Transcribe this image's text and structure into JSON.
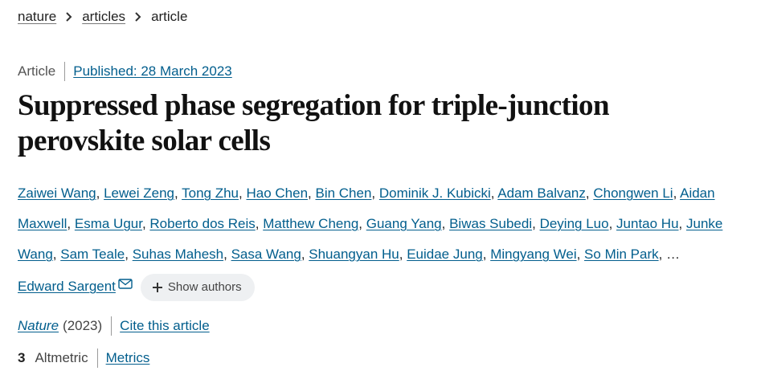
{
  "breadcrumb": {
    "items": [
      "nature",
      "articles",
      "article"
    ]
  },
  "meta": {
    "type": "Article",
    "published": "Published: 28 March 2023"
  },
  "title": "Suppressed phase segregation for triple-junction perovskite solar cells",
  "authors": {
    "names": [
      "Zaiwei Wang",
      "Lewei Zeng",
      "Tong Zhu",
      "Hao Chen",
      "Bin Chen",
      "Dominik J. Kubicki",
      "Adam Balvanz",
      "Chongwen Li",
      "Aidan Maxwell",
      "Esma Ugur",
      "Roberto dos Reis",
      "Matthew Cheng",
      "Guang Yang",
      "Biwas Subedi",
      "Deying Luo",
      "Juntao Hu",
      "Junke Wang",
      "Sam Teale",
      "Suhas Mahesh",
      "Sasa Wang",
      "Shuangyan Hu",
      "Euidae Jung",
      "Mingyang Wei",
      "So Min Park"
    ],
    "ellipsis": "…",
    "last_author": "Edward Sargent",
    "show_authors_label": "Show authors"
  },
  "journal": {
    "name": "Nature",
    "year": "(2023)",
    "cite_label": "Cite this article"
  },
  "metrics": {
    "altmetric_count": "3",
    "altmetric_label": "Altmetric",
    "metrics_link": "Metrics"
  },
  "colors": {
    "link": "#025e8d",
    "text": "#222222",
    "pill_bg": "#eef0f2"
  }
}
